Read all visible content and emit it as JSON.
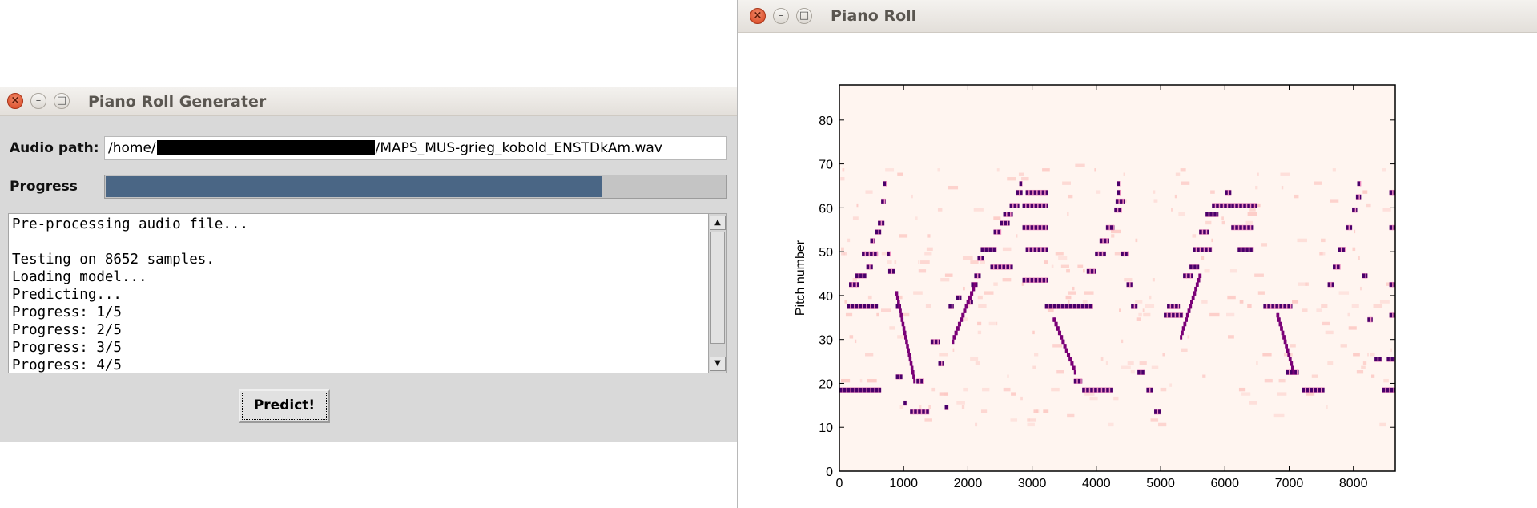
{
  "left_window": {
    "title": "Piano Roll Generater",
    "audio_label": "Audio path:",
    "audio_path_prefix": "/home/",
    "audio_path_suffix": "/MAPS_MUS-grieg_kobold_ENSTDkAm.wav",
    "progress_label": "Progress",
    "progress_fraction": 0.8,
    "log_lines": [
      "Pre-processing audio file...",
      "",
      "Testing on 8652 samples.",
      "Loading model...",
      "Predicting...",
      "Progress: 1/5",
      "Progress: 2/5",
      "Progress: 3/5",
      "Progress: 4/5"
    ],
    "predict_button": "Predict!"
  },
  "right_window": {
    "title": "Piano Roll"
  },
  "window_buttons": {
    "close": "×",
    "minimize": "–",
    "maximize": "□"
  },
  "chart_data": {
    "type": "heatmap",
    "title": "",
    "xlabel": "",
    "ylabel": "Pitch number",
    "xlim": [
      0,
      8652
    ],
    "ylim": [
      0,
      88
    ],
    "xticks": [
      0,
      1000,
      2000,
      3000,
      4000,
      5000,
      6000,
      7000,
      8000
    ],
    "yticks": [
      0,
      10,
      20,
      30,
      40,
      50,
      60,
      70,
      80
    ],
    "colormap": [
      "#fff5f0",
      "#fcc5c0",
      "#dd3497",
      "#7a0177",
      "#49006a"
    ],
    "note_events": [
      {
        "pitch": 18,
        "start": 0,
        "end": 650
      },
      {
        "pitch": 37,
        "start": 120,
        "end": 600
      },
      {
        "pitch": 42,
        "start": 150,
        "end": 300
      },
      {
        "pitch": 44,
        "start": 250,
        "end": 420
      },
      {
        "pitch": 49,
        "start": 350,
        "end": 600
      },
      {
        "pitch": 46,
        "start": 420,
        "end": 520
      },
      {
        "pitch": 52,
        "start": 480,
        "end": 560
      },
      {
        "pitch": 54,
        "start": 560,
        "end": 650
      },
      {
        "pitch": 56,
        "start": 600,
        "end": 700
      },
      {
        "pitch": 61,
        "start": 650,
        "end": 720
      },
      {
        "pitch": 65,
        "start": 680,
        "end": 740
      },
      {
        "pitch": 49,
        "start": 740,
        "end": 800
      },
      {
        "pitch": 45,
        "start": 760,
        "end": 860
      },
      {
        "pitch": 37,
        "start": 880,
        "end": 960
      },
      {
        "pitch": 21,
        "start": 880,
        "end": 980
      },
      {
        "pitch": 15,
        "start": 1000,
        "end": 1060
      },
      {
        "pitch": 13,
        "start": 1100,
        "end": 1400
      },
      {
        "pitch": 20,
        "start": 1200,
        "end": 1320
      },
      {
        "pitch": 29,
        "start": 1420,
        "end": 1560
      },
      {
        "pitch": 24,
        "start": 1540,
        "end": 1620
      },
      {
        "pitch": 14,
        "start": 1640,
        "end": 1700
      },
      {
        "pitch": 37,
        "start": 1700,
        "end": 1780
      },
      {
        "pitch": 39,
        "start": 1820,
        "end": 1900
      },
      {
        "pitch": 38,
        "start": 1980,
        "end": 2080
      },
      {
        "pitch": 42,
        "start": 2050,
        "end": 2150
      },
      {
        "pitch": 44,
        "start": 2100,
        "end": 2200
      },
      {
        "pitch": 48,
        "start": 2150,
        "end": 2250
      },
      {
        "pitch": 50,
        "start": 2200,
        "end": 2450
      },
      {
        "pitch": 46,
        "start": 2350,
        "end": 2700
      },
      {
        "pitch": 54,
        "start": 2400,
        "end": 2520
      },
      {
        "pitch": 56,
        "start": 2500,
        "end": 2650
      },
      {
        "pitch": 58,
        "start": 2550,
        "end": 2700
      },
      {
        "pitch": 60,
        "start": 2650,
        "end": 2800
      },
      {
        "pitch": 63,
        "start": 2750,
        "end": 2850
      },
      {
        "pitch": 65,
        "start": 2800,
        "end": 2850
      },
      {
        "pitch": 60,
        "start": 2850,
        "end": 3250
      },
      {
        "pitch": 63,
        "start": 2900,
        "end": 3250
      },
      {
        "pitch": 55,
        "start": 2850,
        "end": 3250
      },
      {
        "pitch": 50,
        "start": 2900,
        "end": 3250
      },
      {
        "pitch": 43,
        "start": 2850,
        "end": 3250
      },
      {
        "pitch": 37,
        "start": 3200,
        "end": 3950
      },
      {
        "pitch": 20,
        "start": 3650,
        "end": 3780
      },
      {
        "pitch": 18,
        "start": 3780,
        "end": 4250
      },
      {
        "pitch": 45,
        "start": 3850,
        "end": 4000
      },
      {
        "pitch": 49,
        "start": 3980,
        "end": 4150
      },
      {
        "pitch": 52,
        "start": 4050,
        "end": 4200
      },
      {
        "pitch": 55,
        "start": 4150,
        "end": 4280
      },
      {
        "pitch": 59,
        "start": 4280,
        "end": 4400
      },
      {
        "pitch": 61,
        "start": 4300,
        "end": 4440
      },
      {
        "pitch": 63,
        "start": 4320,
        "end": 4380
      },
      {
        "pitch": 65,
        "start": 4320,
        "end": 4370
      },
      {
        "pitch": 49,
        "start": 4380,
        "end": 4500
      },
      {
        "pitch": 42,
        "start": 4470,
        "end": 4560
      },
      {
        "pitch": 37,
        "start": 4540,
        "end": 4640
      },
      {
        "pitch": 22,
        "start": 4640,
        "end": 4760
      },
      {
        "pitch": 18,
        "start": 4780,
        "end": 4880
      },
      {
        "pitch": 13,
        "start": 4900,
        "end": 5000
      },
      {
        "pitch": 35,
        "start": 5050,
        "end": 5350
      },
      {
        "pitch": 37,
        "start": 5100,
        "end": 5300
      },
      {
        "pitch": 44,
        "start": 5350,
        "end": 5500
      },
      {
        "pitch": 46,
        "start": 5450,
        "end": 5600
      },
      {
        "pitch": 50,
        "start": 5500,
        "end": 5800
      },
      {
        "pitch": 54,
        "start": 5600,
        "end": 5750
      },
      {
        "pitch": 58,
        "start": 5700,
        "end": 5900
      },
      {
        "pitch": 60,
        "start": 5800,
        "end": 6100
      },
      {
        "pitch": 63,
        "start": 6000,
        "end": 6100
      },
      {
        "pitch": 60,
        "start": 6100,
        "end": 6500
      },
      {
        "pitch": 55,
        "start": 6100,
        "end": 6450
      },
      {
        "pitch": 50,
        "start": 6200,
        "end": 6450
      },
      {
        "pitch": 37,
        "start": 6600,
        "end": 7050
      },
      {
        "pitch": 22,
        "start": 6950,
        "end": 7150
      },
      {
        "pitch": 18,
        "start": 7200,
        "end": 7550
      },
      {
        "pitch": 42,
        "start": 7600,
        "end": 7700
      },
      {
        "pitch": 46,
        "start": 7680,
        "end": 7800
      },
      {
        "pitch": 50,
        "start": 7760,
        "end": 7880
      },
      {
        "pitch": 55,
        "start": 7880,
        "end": 7980
      },
      {
        "pitch": 59,
        "start": 7980,
        "end": 8060
      },
      {
        "pitch": 62,
        "start": 8040,
        "end": 8120
      },
      {
        "pitch": 65,
        "start": 8060,
        "end": 8120
      },
      {
        "pitch": 44,
        "start": 8140,
        "end": 8220
      },
      {
        "pitch": 34,
        "start": 8220,
        "end": 8300
      },
      {
        "pitch": 25,
        "start": 8330,
        "end": 8450
      },
      {
        "pitch": 18,
        "start": 8450,
        "end": 8652
      },
      {
        "pitch": 25,
        "start": 8520,
        "end": 8652
      },
      {
        "pitch": 35,
        "start": 8560,
        "end": 8652
      },
      {
        "pitch": 42,
        "start": 8560,
        "end": 8652
      },
      {
        "pitch": 55,
        "start": 8560,
        "end": 8652
      },
      {
        "pitch": 63,
        "start": 8560,
        "end": 8652
      }
    ],
    "glissandos": [
      {
        "start": 3320,
        "end": 3650,
        "from_pitch": 34,
        "to_pitch": 22
      },
      {
        "start": 6800,
        "end": 7050,
        "from_pitch": 35,
        "to_pitch": 22
      },
      {
        "start": 870,
        "end": 1150,
        "from_pitch": 40,
        "to_pitch": 20
      },
      {
        "start": 1750,
        "end": 2100,
        "from_pitch": 29,
        "to_pitch": 42
      },
      {
        "start": 5300,
        "end": 5600,
        "from_pitch": 30,
        "to_pitch": 44
      }
    ]
  }
}
